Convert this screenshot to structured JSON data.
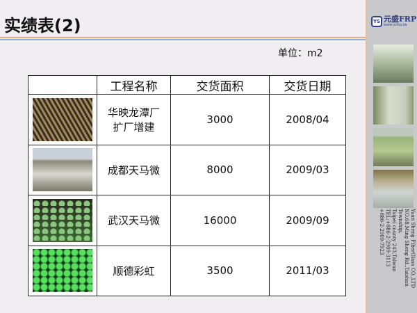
{
  "title": "实绩表(2)",
  "unit": "单位：m2",
  "logo": {
    "mark": "YS",
    "name": "元盛FRP",
    "url": "www.ysfrp.tw"
  },
  "address": [
    "Yuan Sheng FiberGlass CO.,LTD",
    "NO.68,Ming Sheng Rd.,Taishan Township,",
    "Taipei county 243,Taiwan",
    "TEL:+886-2-2909-3113",
    "+886-2-2909-7923"
  ],
  "table": {
    "headers": [
      "",
      "工程名称",
      "交货面积",
      "交货日期"
    ],
    "rows": [
      {
        "name": [
          "华映龙潭厂",
          "扩厂增建"
        ],
        "area": "3000",
        "date": "2008/04"
      },
      {
        "name": [
          "成都天马微"
        ],
        "area": "8000",
        "date": "2009/03"
      },
      {
        "name": [
          "武汉天马微"
        ],
        "area": "16000",
        "date": "2009/09"
      },
      {
        "name": [
          "顺德彩虹"
        ],
        "area": "3500",
        "date": "2011/03"
      }
    ]
  }
}
